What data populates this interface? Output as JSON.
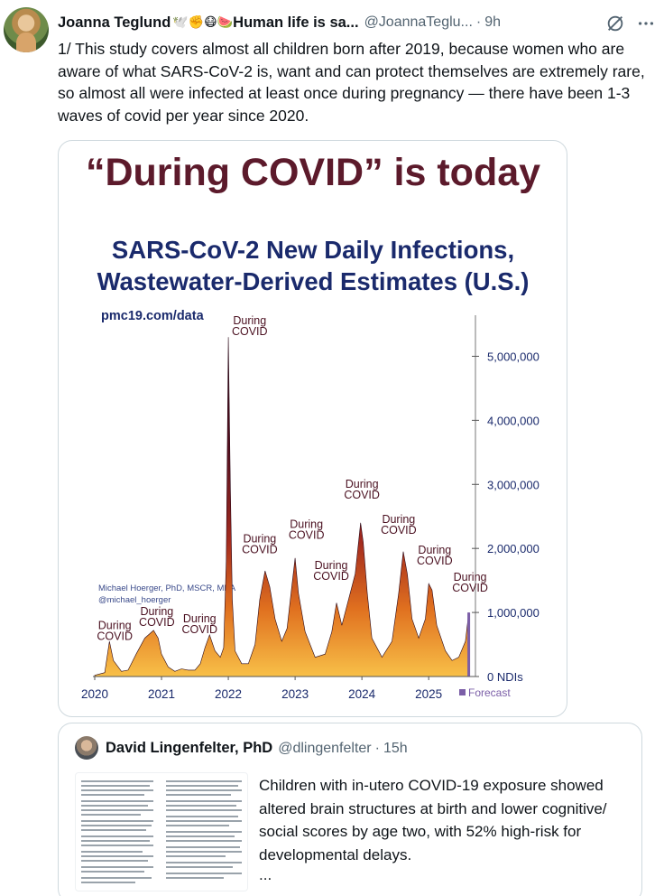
{
  "tweet": {
    "author_name": "Joanna Teglund",
    "author_emojis": "🕊️✊😷🍉",
    "author_name_suffix": "Human life is sa...",
    "handle": "@JoannaTeglu...",
    "separator": "·",
    "time": "9h",
    "text": "1/ This study covers almost all children born after 2019, because women who are aware of what SARS-CoV-2 is, want and can protect themselves are extremely rare, so almost all were infected at least once during pregnancy — there have been 1-3 waves of covid per year since 2020."
  },
  "media": {
    "headline": "“During COVID” is today",
    "chart_title_line1": "SARS-CoV-2 New Daily Infections,",
    "chart_title_line2": "Wastewater-Derived Estimates (U.S.)",
    "source_url": "pmc19.com/data",
    "credit_line1": "Michael Hoerger, PhD, MSCR, MBA",
    "credit_line2": "@michael_hoerger",
    "forecast_legend": "Forecast"
  },
  "chart_data": {
    "type": "area",
    "title": "SARS-CoV-2 New Daily Infections, Wastewater-Derived Estimates (U.S.)",
    "ylabel": "",
    "y_unit_label": "NDIs",
    "ylim": [
      0,
      5500000
    ],
    "xlim": [
      2020.0,
      2025.7
    ],
    "x_ticks": [
      "2020",
      "2021",
      "2022",
      "2023",
      "2024",
      "2025"
    ],
    "y_ticks": [
      "0",
      "1,000,000",
      "2,000,000",
      "3,000,000",
      "4,000,000",
      "5,000,000"
    ],
    "x": [
      2020.0,
      2020.15,
      2020.22,
      2020.28,
      2020.4,
      2020.5,
      2020.62,
      2020.75,
      2020.88,
      2020.95,
      2021.0,
      2021.1,
      2021.2,
      2021.3,
      2021.4,
      2021.5,
      2021.58,
      2021.65,
      2021.72,
      2021.8,
      2021.88,
      2021.93,
      2021.97,
      2022.0,
      2022.03,
      2022.06,
      2022.1,
      2022.2,
      2022.3,
      2022.4,
      2022.47,
      2022.55,
      2022.62,
      2022.7,
      2022.8,
      2022.88,
      2022.95,
      2023.0,
      2023.05,
      2023.15,
      2023.3,
      2023.45,
      2023.55,
      2023.62,
      2023.7,
      2023.8,
      2023.9,
      2023.98,
      2024.02,
      2024.08,
      2024.15,
      2024.3,
      2024.45,
      2024.55,
      2024.62,
      2024.68,
      2024.75,
      2024.85,
      2024.95,
      2025.0,
      2025.05,
      2025.12,
      2025.25,
      2025.35,
      2025.45,
      2025.55,
      2025.6
    ],
    "series": [
      {
        "values": [
          20000,
          60000,
          550000,
          250000,
          80000,
          100000,
          350000,
          600000,
          720000,
          600000,
          350000,
          150000,
          80000,
          120000,
          100000,
          100000,
          200000,
          450000,
          650000,
          400000,
          300000,
          450000,
          1800000,
          5300000,
          3000000,
          1200000,
          400000,
          200000,
          200000,
          500000,
          1200000,
          1650000,
          1400000,
          900000,
          550000,
          750000,
          1400000,
          1850000,
          1300000,
          700000,
          300000,
          350000,
          700000,
          1150000,
          800000,
          1200000,
          1600000,
          2400000,
          2100000,
          1300000,
          600000,
          300000,
          550000,
          1300000,
          1950000,
          1600000,
          900000,
          600000,
          900000,
          1450000,
          1350000,
          800000,
          400000,
          250000,
          300000,
          550000,
          1000000
        ]
      }
    ],
    "forecast_from_x": 2025.6,
    "annotations": [
      "During COVID",
      "During COVID",
      "During COVID",
      "During COVID",
      "During COVID",
      "During COVID",
      "During COVID",
      "During COVID",
      "During COVID",
      "During COVID",
      "During COVID"
    ]
  },
  "quote": {
    "author_name": "David Lingenfelter, PhD",
    "handle": "@dlingenfelter",
    "separator": "·",
    "time": "15h",
    "text": "Children with in-utero COVID-19 exposure showed altered brain structures at birth and lower cognitive/ social scores by age two, with 52% high-risk for developmental delays.",
    "ellipsis": "..."
  },
  "colors": {
    "chart_title": "#1a2a6c",
    "headline": "#5c1a2b",
    "forecast": "#7b5ea7",
    "area_top": "#3a0d1e",
    "area_bottom": "#f5b83d"
  }
}
